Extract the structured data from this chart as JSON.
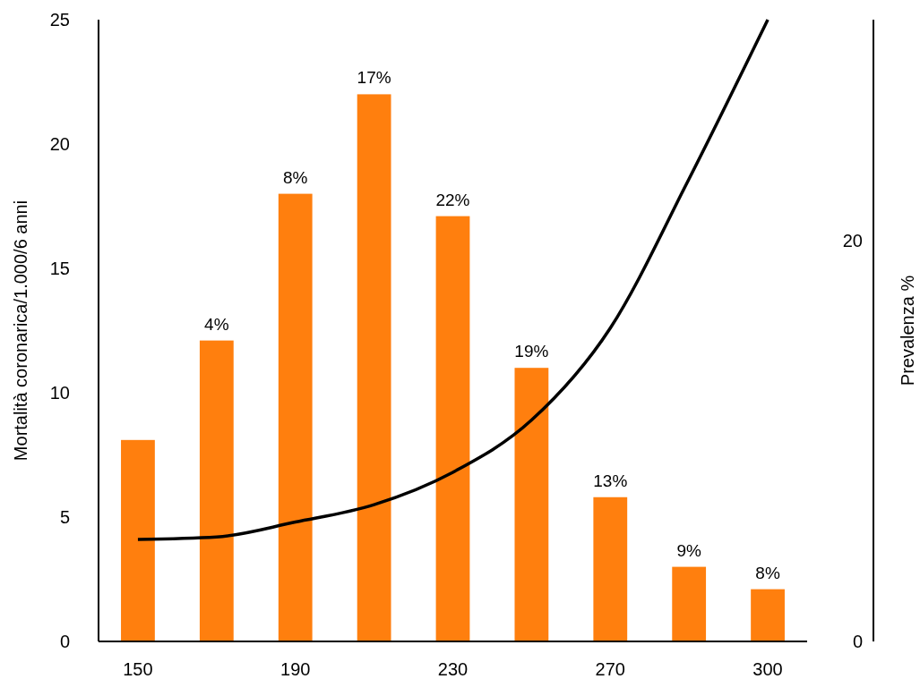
{
  "chart_data": {
    "type": "bar",
    "ylabel": "Mortalità coronarica/1.000/6 anni",
    "y2label": "Prevalenza %",
    "categories": [
      "150",
      null,
      "190",
      null,
      "230",
      null,
      "270",
      null,
      "300"
    ],
    "series": [
      {
        "color": "#ff7f0e",
        "values": [
          8.1,
          12.1,
          18.0,
          22.0,
          17.1,
          11.0,
          5.8,
          3.0,
          2.1
        ]
      },
      {
        "type": "line",
        "color": "#000000",
        "values": [
          4.1,
          4.2,
          4.8,
          5.5,
          6.8,
          8.9,
          12.6,
          18.6,
          25
        ]
      }
    ],
    "annotations": [
      "4%",
      "8%",
      "17%",
      "22%",
      "19%",
      "13%",
      "9%",
      "8%"
    ],
    "ylim": [
      0,
      25
    ],
    "yticks": [
      0,
      5,
      10,
      15,
      20,
      25
    ],
    "y2lim": [
      0,
      31
    ],
    "y2ticks": [
      0,
      20
    ],
    "grid": false,
    "marker": "none",
    "line_style": "solid"
  }
}
